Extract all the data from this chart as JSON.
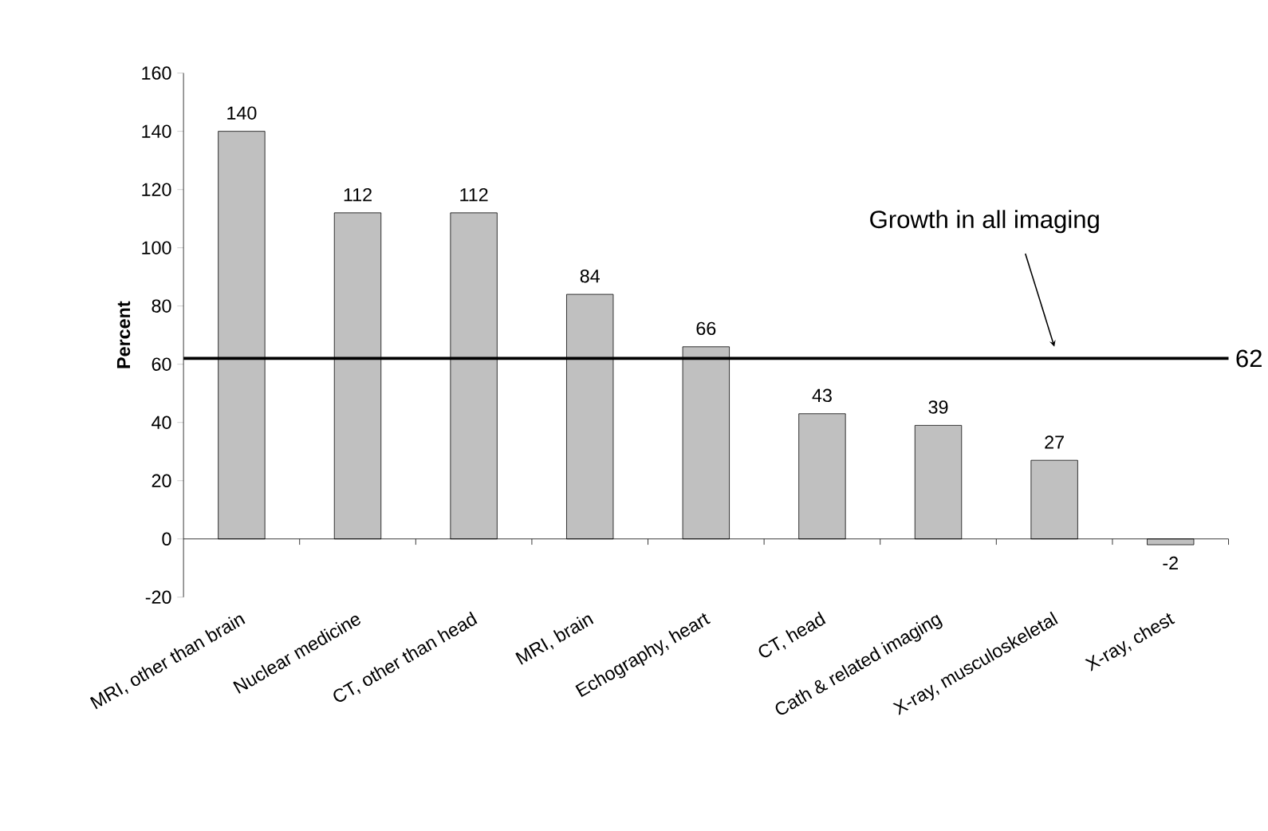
{
  "chart_data": {
    "type": "bar",
    "ylabel": "Percent",
    "categories": [
      "MRI, other than brain",
      "Nuclear medicine",
      "CT, other than head",
      "MRI, brain",
      "Echography, heart",
      "CT, head",
      "Cath & related imaging",
      "X-ray, musculoskeletal",
      "X-ray, chest"
    ],
    "values": [
      140,
      112,
      112,
      84,
      66,
      43,
      39,
      27,
      -2
    ],
    "color": "#c0c0c0",
    "data_labels": true,
    "ylim": [
      -20,
      160
    ],
    "yticks": [
      -20,
      0,
      20,
      40,
      60,
      80,
      100,
      120,
      140,
      160
    ],
    "ref_lines": [
      {
        "axis": "y",
        "value": 62,
        "label": "62",
        "color": "#000000"
      }
    ],
    "annotations": [
      "Growth in all imaging"
    ]
  }
}
